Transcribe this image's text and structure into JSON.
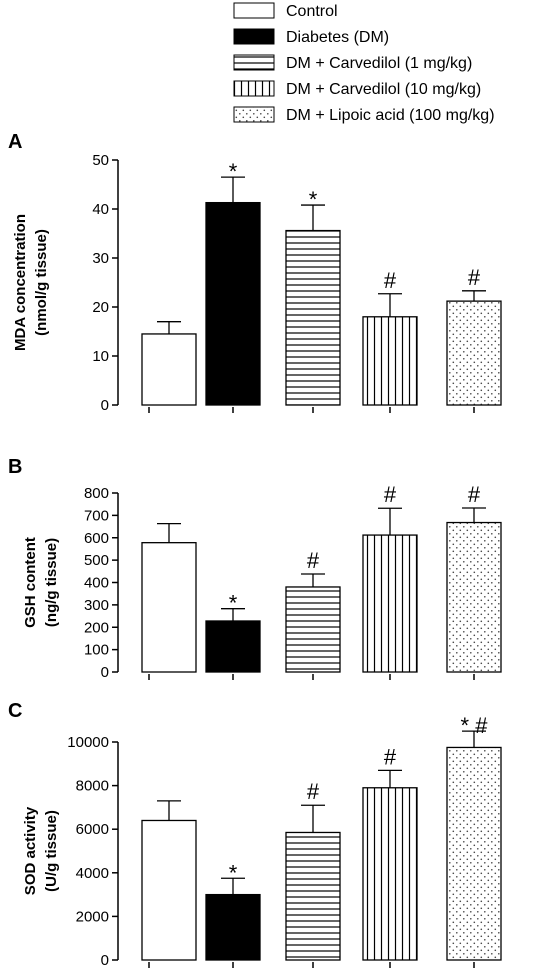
{
  "legend": [
    {
      "label": "Control",
      "pattern": "white"
    },
    {
      "label": "Diabetes (DM)",
      "pattern": "black"
    },
    {
      "label": "DM + Carvedilol (1 mg/kg)",
      "pattern": "hlines"
    },
    {
      "label": "DM + Carvedilol (10 mg/kg)",
      "pattern": "vlines"
    },
    {
      "label": "DM + Lipoic acid (100 mg/kg)",
      "pattern": "dots"
    }
  ],
  "chart_data": [
    {
      "type": "bar",
      "panel": "A",
      "ylabel_line1": "MDA concentration",
      "ylabel_line2": "(nmol/g tissue)",
      "ylim": [
        0,
        50
      ],
      "yticks": [
        0,
        10,
        20,
        30,
        40,
        50
      ],
      "categories": [
        "Control",
        "Diabetes (DM)",
        "DM + Carvedilol (1 mg/kg)",
        "DM + Carvedilol (10 mg/kg)",
        "DM + Lipoic acid (100 mg/kg)"
      ],
      "values": [
        14.5,
        41.3,
        35.6,
        18.0,
        21.2
      ],
      "errors": [
        2.5,
        5.2,
        5.2,
        4.7,
        2.1
      ],
      "annotations": [
        "",
        "*",
        "*",
        "#",
        "#"
      ]
    },
    {
      "type": "bar",
      "panel": "B",
      "ylabel_line1": "GSH content",
      "ylabel_line2": "(ng/g tissue)",
      "ylim": [
        0,
        800
      ],
      "yticks": [
        0,
        100,
        200,
        300,
        400,
        500,
        600,
        700,
        800
      ],
      "categories": [
        "Control",
        "Diabetes (DM)",
        "DM + Carvedilol (1 mg/kg)",
        "DM + Carvedilol (10 mg/kg)",
        "DM + Lipoic acid (100 mg/kg)"
      ],
      "values": [
        578,
        228,
        380,
        612,
        668
      ],
      "errors": [
        85,
        55,
        58,
        120,
        65
      ],
      "annotations": [
        "",
        "*",
        "#",
        "#",
        "#"
      ]
    },
    {
      "type": "bar",
      "panel": "C",
      "ylabel_line1": "SOD activity",
      "ylabel_line2": "(U/g tissue)",
      "ylim": [
        0,
        11000
      ],
      "yticks": [
        0,
        2000,
        4000,
        6000,
        8000,
        10000
      ],
      "categories": [
        "Control",
        "Diabetes (DM)",
        "DM + Carvedilol (1 mg/kg)",
        "DM + Carvedilol (10 mg/kg)",
        "DM + Lipoic acid (100 mg/kg)"
      ],
      "values": [
        6400,
        3000,
        5850,
        7900,
        9750
      ],
      "errors": [
        900,
        750,
        1250,
        800,
        750
      ],
      "annotations": [
        "",
        "*",
        "#",
        "#",
        "* #"
      ]
    }
  ]
}
